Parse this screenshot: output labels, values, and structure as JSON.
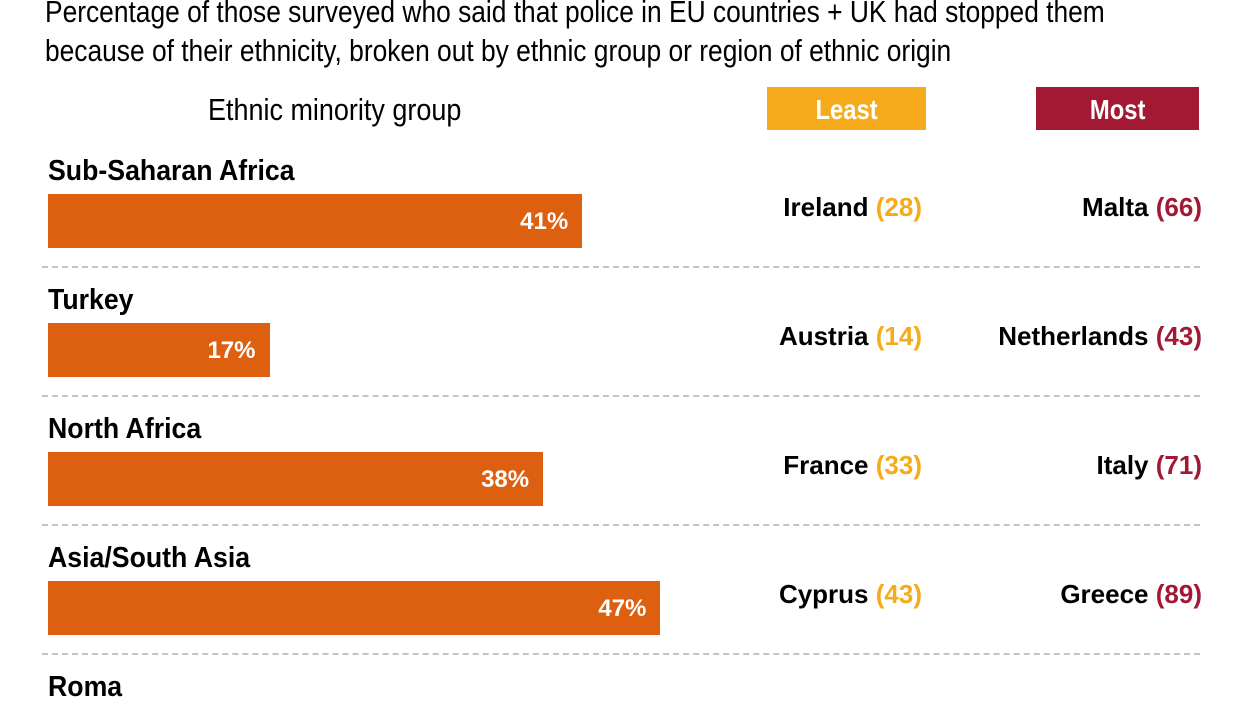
{
  "colors": {
    "bar": "#dd6010",
    "least": "#f5ab1b",
    "most": "#a31934"
  },
  "chart_data": {
    "type": "bar",
    "orientation": "horizontal",
    "subtitle": "Percentage of those surveyed who said that police in EU countries + UK had stopped them because of their ethnicity, broken out by ethnic group or region of ethnic origin",
    "column_header": "Ethnic minority group",
    "least_label": "Least",
    "most_label": "Most",
    "xlim": [
      0,
      100
    ],
    "rows": [
      {
        "group": "Sub-Saharan Africa",
        "value": 41,
        "value_label": "41%",
        "least_country": "Ireland",
        "least_value": "(28)",
        "most_country": "Malta",
        "most_value": "(66)"
      },
      {
        "group": "Turkey",
        "value": 17,
        "value_label": "17%",
        "least_country": "Austria",
        "least_value": "(14)",
        "most_country": "Netherlands",
        "most_value": "(43)"
      },
      {
        "group": "North Africa",
        "value": 38,
        "value_label": "38%",
        "least_country": "France",
        "least_value": "(33)",
        "most_country": "Italy",
        "most_value": "(71)"
      },
      {
        "group": "Asia/South Asia",
        "value": 47,
        "value_label": "47%",
        "least_country": "Cyprus",
        "least_value": "(43)",
        "most_country": "Greece",
        "most_value": "(89)"
      },
      {
        "group": "Roma"
      }
    ]
  }
}
